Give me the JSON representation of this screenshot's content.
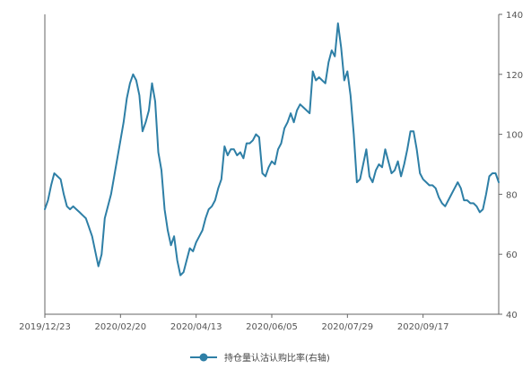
{
  "chart_data": {
    "type": "line",
    "title": "",
    "xlabel": "",
    "ylabel": "",
    "y_axis_side": "right",
    "ylim": [
      40,
      140
    ],
    "yticks": [
      40,
      60,
      80,
      100,
      120,
      140
    ],
    "xtick_labels": [
      "2019/12/23",
      "2020/02/20",
      "2020/04/13",
      "2020/06/05",
      "2020/07/29",
      "2020/09/17"
    ],
    "grid": false,
    "legend_position": "bottom-center",
    "series": [
      {
        "name": "持仓量认沽认购比率(右轴)",
        "color": "#2e7fa6",
        "values": [
          75,
          78,
          83,
          87,
          86,
          85,
          80,
          76,
          75,
          76,
          75,
          74,
          73,
          72,
          69,
          66,
          61,
          56,
          60,
          72,
          76,
          80,
          86,
          92,
          98,
          104,
          112,
          117,
          120,
          118,
          113,
          101,
          104,
          108,
          117,
          111,
          94,
          88,
          75,
          68,
          63,
          66,
          58,
          53,
          54,
          58,
          62,
          61,
          64,
          66,
          68,
          72,
          75,
          76,
          78,
          82,
          85,
          96,
          93,
          95,
          95,
          93,
          94,
          92,
          97,
          97,
          98,
          100,
          99,
          87,
          86,
          89,
          91,
          90,
          95,
          97,
          102,
          104,
          107,
          104,
          108,
          110,
          109,
          108,
          107,
          121,
          118,
          119,
          118,
          117,
          124,
          128,
          126,
          137,
          129,
          118,
          121,
          113,
          100,
          84,
          85,
          90,
          95,
          86,
          84,
          88,
          90,
          89,
          95,
          91,
          87,
          88,
          91,
          86,
          90,
          95,
          101,
          101,
          95,
          87,
          85,
          84,
          83,
          83,
          82,
          79,
          77,
          76,
          78,
          80,
          82,
          84,
          82,
          78,
          78,
          77,
          77,
          76,
          74,
          75,
          80,
          86,
          87,
          87,
          84
        ]
      }
    ]
  }
}
